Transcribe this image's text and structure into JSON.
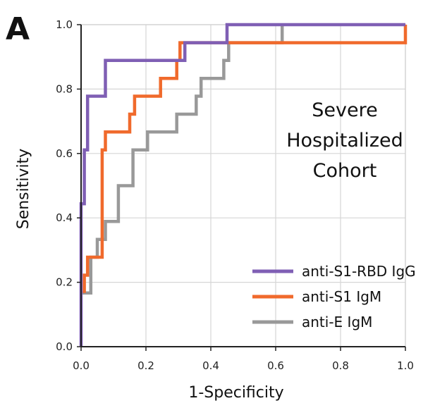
{
  "panel_label": "A",
  "annotation": [
    "Severe",
    "Hospitalized",
    "Cohort"
  ],
  "chart_data": {
    "type": "line",
    "title": "",
    "xlabel": "1-Specificity",
    "ylabel": "Sensitivity",
    "xlim": [
      0,
      1
    ],
    "ylim": [
      0,
      1
    ],
    "xticks": [
      "0.0",
      "0.2",
      "0.4",
      "0.6",
      "0.8",
      "1.0"
    ],
    "yticks": [
      "0.0",
      "0.2",
      "0.4",
      "0.6",
      "0.8",
      "1.0"
    ],
    "grid": true,
    "legend_position": "bottom-right",
    "series": [
      {
        "name": "anti-S1-RBD IgG",
        "color": "#7f5fb4",
        "points": [
          [
            0,
            0
          ],
          [
            0,
            0.444
          ],
          [
            0.01,
            0.444
          ],
          [
            0.01,
            0.611
          ],
          [
            0.02,
            0.611
          ],
          [
            0.02,
            0.778
          ],
          [
            0.075,
            0.778
          ],
          [
            0.075,
            0.889
          ],
          [
            0.32,
            0.889
          ],
          [
            0.32,
            0.944
          ],
          [
            0.45,
            0.944
          ],
          [
            0.45,
            1
          ],
          [
            1,
            1
          ]
        ]
      },
      {
        "name": "anti-S1 IgM",
        "color": "#f06a2c",
        "points": [
          [
            0.01,
            0.167
          ],
          [
            0.01,
            0.222
          ],
          [
            0.02,
            0.222
          ],
          [
            0.02,
            0.278
          ],
          [
            0.065,
            0.278
          ],
          [
            0.065,
            0.611
          ],
          [
            0.075,
            0.611
          ],
          [
            0.075,
            0.667
          ],
          [
            0.15,
            0.667
          ],
          [
            0.15,
            0.722
          ],
          [
            0.165,
            0.722
          ],
          [
            0.165,
            0.778
          ],
          [
            0.245,
            0.778
          ],
          [
            0.245,
            0.833
          ],
          [
            0.295,
            0.833
          ],
          [
            0.295,
            0.889
          ],
          [
            0.305,
            0.889
          ],
          [
            0.305,
            0.944
          ],
          [
            1,
            0.944
          ],
          [
            1,
            1
          ]
        ]
      },
      {
        "name": "anti-E IgM",
        "color": "#999999",
        "points": [
          [
            0,
            0.167
          ],
          [
            0.03,
            0.167
          ],
          [
            0.03,
            0.278
          ],
          [
            0.05,
            0.278
          ],
          [
            0.05,
            0.333
          ],
          [
            0.075,
            0.333
          ],
          [
            0.075,
            0.389
          ],
          [
            0.115,
            0.389
          ],
          [
            0.115,
            0.5
          ],
          [
            0.16,
            0.5
          ],
          [
            0.16,
            0.611
          ],
          [
            0.205,
            0.611
          ],
          [
            0.205,
            0.667
          ],
          [
            0.295,
            0.667
          ],
          [
            0.295,
            0.722
          ],
          [
            0.355,
            0.722
          ],
          [
            0.355,
            0.778
          ],
          [
            0.37,
            0.778
          ],
          [
            0.37,
            0.833
          ],
          [
            0.44,
            0.833
          ],
          [
            0.44,
            0.889
          ],
          [
            0.455,
            0.889
          ],
          [
            0.455,
            0.944
          ],
          [
            0.62,
            0.944
          ],
          [
            0.62,
            1
          ]
        ]
      }
    ]
  }
}
